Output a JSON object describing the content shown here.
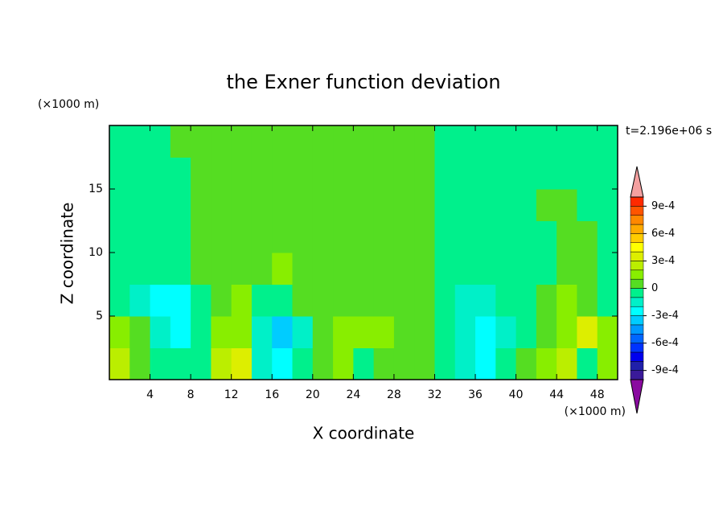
{
  "chart_data": {
    "type": "contour",
    "title": "the Exner function deviation",
    "x_label": "X coordinate",
    "y_label": "Z coordinate",
    "x_unit": "(×1000 m)",
    "y_unit": "(×1000 m)",
    "time_label": "t=2.196e+06 s",
    "xlim": [
      0,
      50
    ],
    "ylim": [
      0,
      20
    ],
    "xticks": [
      4,
      8,
      12,
      16,
      20,
      24,
      28,
      32,
      36,
      40,
      44,
      48
    ],
    "yticks": [
      5,
      10,
      15
    ],
    "x": [
      1,
      3,
      5,
      7,
      9,
      11,
      13,
      15,
      17,
      19,
      21,
      23,
      25,
      27,
      29,
      31,
      33,
      35,
      37,
      39,
      41,
      43,
      45,
      47,
      49
    ],
    "z": [
      1.25,
      3.75,
      6.25,
      8.75,
      11.25,
      13.75,
      16.25,
      18.75
    ],
    "values": [
      [
        0.00025,
        5e-05,
        -5e-05,
        -0.0001,
        -5e-05,
        0.00025,
        0.00035,
        -0.00015,
        -0.0003,
        -0.0001,
        5e-05,
        0.00015,
        -5e-05,
        5e-05,
        5e-05,
        5e-05,
        -5e-05,
        -0.00015,
        -0.00025,
        -0.0001,
        5e-05,
        0.00015,
        0.00025,
        -0.0001,
        0.00015
      ],
      [
        0.00015,
        5e-05,
        -0.0002,
        -0.00025,
        -0.0001,
        0.00015,
        0.00015,
        -0.0002,
        -0.0004,
        -0.0002,
        5e-05,
        0.00015,
        0.00015,
        0.00015,
        5e-05,
        5e-05,
        -5e-05,
        -0.00015,
        -0.0003,
        -0.00015,
        -5e-05,
        5e-05,
        0.00015,
        0.00035,
        0.00015
      ],
      [
        -0.0001,
        -0.00015,
        -0.00025,
        -0.00025,
        -5e-05,
        5e-05,
        0.00015,
        -0.0001,
        -5e-05,
        5e-05,
        5e-05,
        5e-05,
        5e-05,
        5e-05,
        5e-05,
        5e-05,
        -5e-05,
        -0.00015,
        -0.00015,
        -5e-05,
        -5e-05,
        5e-05,
        0.00015,
        5e-05,
        -5e-05
      ],
      [
        -5e-05,
        -5e-05,
        -5e-05,
        -5e-05,
        5e-05,
        5e-05,
        5e-05,
        5e-05,
        0.00015,
        5e-05,
        5e-05,
        5e-05,
        5e-05,
        5e-05,
        5e-05,
        5e-05,
        -5e-05,
        -5e-05,
        -5e-05,
        -5e-05,
        -5e-05,
        -5e-05,
        5e-05,
        5e-05,
        -5e-05
      ],
      [
        -5e-05,
        -5e-05,
        -5e-05,
        -5e-05,
        5e-05,
        5e-05,
        5e-05,
        5e-05,
        5e-05,
        5e-05,
        5e-05,
        5e-05,
        5e-05,
        5e-05,
        5e-05,
        5e-05,
        -5e-05,
        -5e-05,
        -5e-05,
        -5e-05,
        -5e-05,
        -5e-05,
        5e-05,
        5e-05,
        -5e-05
      ],
      [
        -5e-05,
        -5e-05,
        -5e-05,
        -5e-05,
        5e-05,
        5e-05,
        5e-05,
        5e-05,
        5e-05,
        5e-05,
        5e-05,
        5e-05,
        5e-05,
        5e-05,
        5e-05,
        5e-05,
        -5e-05,
        -5e-05,
        -5e-05,
        -5e-05,
        -5e-05,
        5e-05,
        5e-05,
        -5e-05,
        -5e-05
      ],
      [
        -5e-05,
        -5e-05,
        -5e-05,
        -5e-05,
        5e-05,
        5e-05,
        5e-05,
        5e-05,
        5e-05,
        5e-05,
        5e-05,
        5e-05,
        5e-05,
        5e-05,
        5e-05,
        5e-05,
        -5e-05,
        -5e-05,
        -5e-05,
        -5e-05,
        -5e-05,
        -5e-05,
        -5e-05,
        -5e-05,
        -5e-05
      ],
      [
        -5e-05,
        -5e-05,
        -5e-05,
        5e-05,
        5e-05,
        5e-05,
        5e-05,
        5e-05,
        5e-05,
        5e-05,
        5e-05,
        5e-05,
        5e-05,
        5e-05,
        5e-05,
        5e-05,
        -5e-05,
        -5e-05,
        -5e-05,
        -5e-05,
        -5e-05,
        -5e-05,
        -5e-05,
        -5e-05,
        -5e-05
      ]
    ],
    "levels": [
      -0.001,
      -0.0009,
      -0.0008,
      -0.0007,
      -0.0006,
      -0.0005,
      -0.0004,
      -0.0003,
      -0.0002,
      -0.0001,
      0,
      0.0001,
      0.0002,
      0.0003,
      0.0004,
      0.0005,
      0.0006,
      0.0007,
      0.0008,
      0.0009,
      0.001
    ],
    "colors": [
      "#3a1a99",
      "#2020aa",
      "#0000ee",
      "#0033ff",
      "#0066ff",
      "#0099ff",
      "#00ccff",
      "#00ffff",
      "#00f0c8",
      "#00f08c",
      "#55dd22",
      "#88ee00",
      "#bbee00",
      "#ddee00",
      "#ffff00",
      "#ffcc00",
      "#ffaa00",
      "#ff8800",
      "#ff5500",
      "#ff2a00"
    ],
    "over_color": "#f4a0a0",
    "under_color": "#8a0aa0",
    "colorbar_ticks": [
      {
        "value": 0.0009,
        "label": "9e-4"
      },
      {
        "value": 0.0006,
        "label": "6e-4"
      },
      {
        "value": 0.0003,
        "label": "3e-4"
      },
      0,
      {
        "value": -0.0003,
        "label": "-3e-4"
      },
      {
        "value": -0.0006,
        "label": "-6e-4"
      },
      {
        "value": -0.0009,
        "label": "-9e-4"
      }
    ]
  }
}
